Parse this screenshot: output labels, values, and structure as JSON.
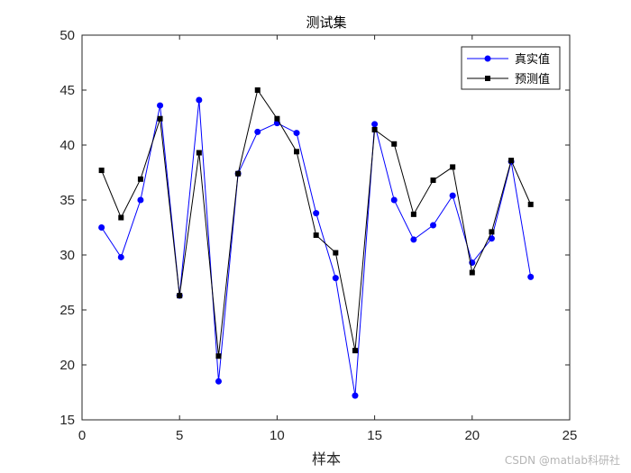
{
  "chart_data": {
    "type": "line",
    "title": "测试集",
    "xlabel": "样本",
    "ylabel": "",
    "xlim": [
      0,
      25
    ],
    "ylim": [
      15,
      50
    ],
    "xticks": [
      0,
      5,
      10,
      15,
      20,
      25
    ],
    "yticks": [
      15,
      20,
      25,
      30,
      35,
      40,
      45,
      50
    ],
    "grid": false,
    "legend_position": "top-right",
    "x": [
      1,
      2,
      3,
      4,
      5,
      6,
      7,
      8,
      9,
      10,
      11,
      12,
      13,
      14,
      15,
      16,
      17,
      18,
      19,
      20,
      21,
      22,
      23
    ],
    "series": [
      {
        "name": "真实值",
        "color": "#0000ff",
        "marker": "circle",
        "values": [
          32.5,
          29.8,
          35.0,
          43.6,
          26.3,
          44.1,
          18.5,
          37.4,
          41.2,
          42.0,
          41.1,
          33.8,
          27.9,
          17.2,
          41.9,
          35.0,
          31.4,
          32.7,
          35.4,
          29.3,
          31.5,
          38.5,
          28.0
        ]
      },
      {
        "name": "预测值",
        "color": "#000000",
        "marker": "square",
        "values": [
          37.7,
          33.4,
          36.9,
          42.4,
          26.3,
          39.3,
          20.8,
          37.4,
          45.0,
          42.4,
          39.4,
          31.8,
          30.2,
          21.3,
          41.4,
          40.1,
          33.7,
          36.8,
          38.0,
          28.4,
          32.1,
          38.6,
          34.6
        ]
      }
    ]
  },
  "watermark": "CSDN @matlab科研社"
}
